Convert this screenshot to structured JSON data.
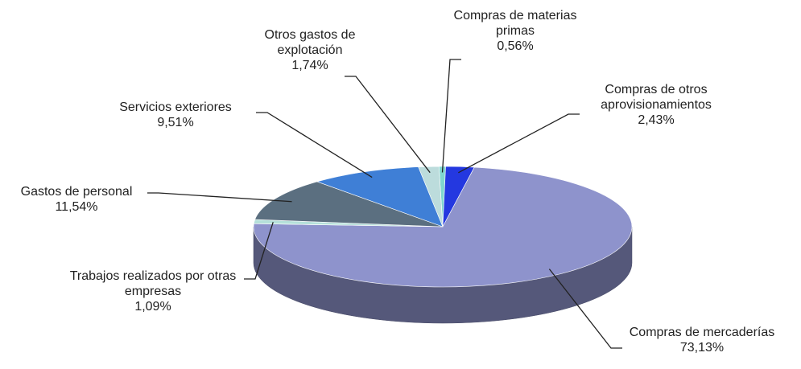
{
  "chart_data": {
    "type": "pie",
    "categories": [
      "Compras de materias primas",
      "Compras de otros aprovisionamientos",
      "Compras de mercaderías",
      "Trabajos realizados por otras empresas",
      "Gastos de personal",
      "Servicios exteriores",
      "Otros gastos de explotación"
    ],
    "values": [
      0.56,
      2.43,
      73.13,
      1.09,
      11.54,
      9.51,
      1.74
    ],
    "value_labels": [
      "0,56%",
      "2,43%",
      "73,13%",
      "1,09%",
      "11,54%",
      "9,51%",
      "1,74%"
    ],
    "colors": [
      "#7fd6cf",
      "#2438e0",
      "#8e93cc",
      "#b5e0da",
      "#5b6f80",
      "#3f7fd6",
      "#bcdcdc"
    ]
  }
}
